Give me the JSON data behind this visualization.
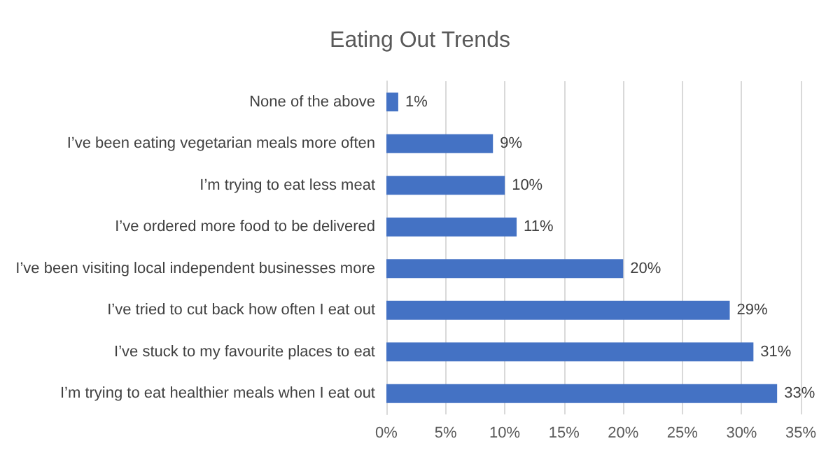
{
  "chart_data": {
    "type": "bar",
    "orientation": "horizontal",
    "title": "Eating Out Trends",
    "categories": [
      "None of the above",
      "I’ve been eating vegetarian meals more often",
      "I’m trying to eat less meat",
      "I’ve ordered more food to be delivered",
      "I’ve been visiting local independent businesses more",
      "I’ve tried to cut back how often I eat out",
      "I’ve stuck to my favourite places to eat",
      "I’m trying to eat healthier meals when I eat out"
    ],
    "values": [
      1,
      9,
      10,
      11,
      20,
      29,
      31,
      33
    ],
    "value_labels": [
      "1%",
      "9%",
      "10%",
      "11%",
      "20%",
      "29%",
      "31%",
      "33%"
    ],
    "color": "#4472c4",
    "xlim": [
      0,
      35
    ],
    "xticks": [
      {
        "value": 0,
        "label": "0%"
      },
      {
        "value": 5,
        "label": "5%"
      },
      {
        "value": 10,
        "label": "10%"
      },
      {
        "value": 15,
        "label": "15%"
      },
      {
        "value": 20,
        "label": "20%"
      },
      {
        "value": 25,
        "label": "25%"
      },
      {
        "value": 30,
        "label": "30%"
      },
      {
        "value": 35,
        "label": "35%"
      }
    ],
    "grid": "x"
  }
}
